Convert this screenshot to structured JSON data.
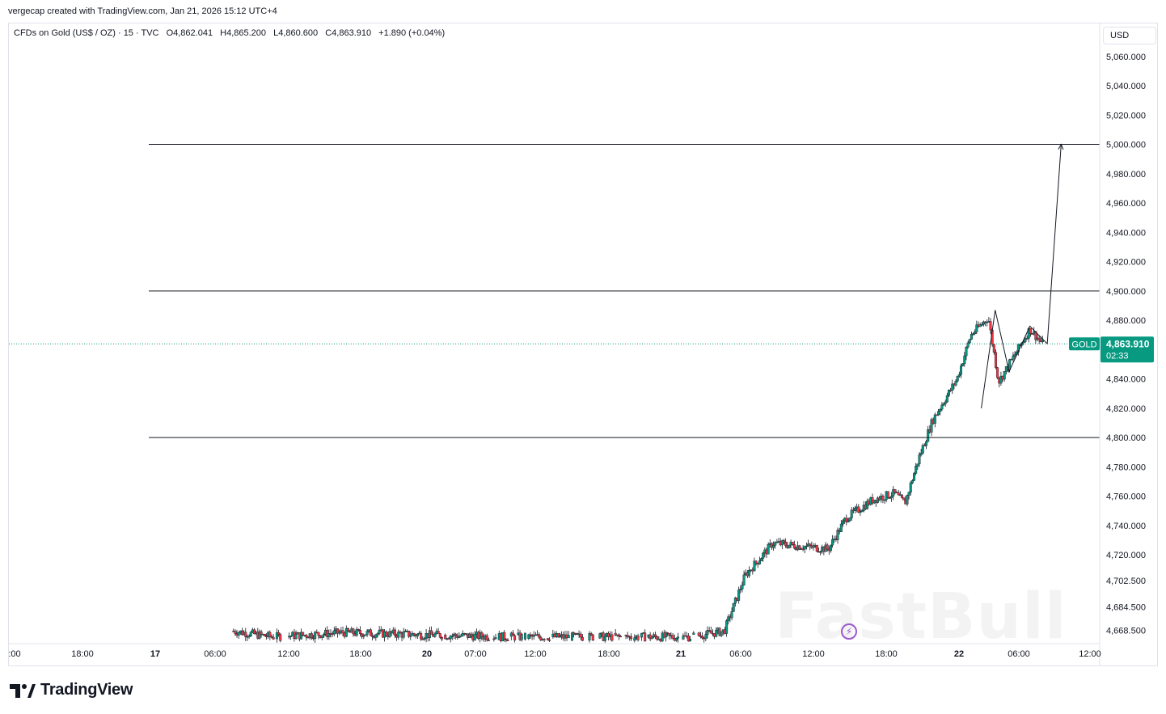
{
  "header": {
    "creator_line": "vergecap created with TradingView.com, Jan 21, 2026 15:12 UTC+4"
  },
  "legend": {
    "symbol": "CFDs on Gold (US$ / OZ) · 15 · TVC",
    "open": "O4,862.041",
    "high": "H4,865.200",
    "low": "L4,860.600",
    "close": "C4,863.910",
    "change": "+1.890 (+0.04%)"
  },
  "price_axis": {
    "currency": "USD",
    "ticks": [
      "5,060.000",
      "5,040.000",
      "5,020.000",
      "5,000.000",
      "4,980.000",
      "4,960.000",
      "4,940.000",
      "4,920.000",
      "4,900.000",
      "4,880.000",
      "4,840.000",
      "4,820.000",
      "4,800.000",
      "4,780.000",
      "4,760.000",
      "4,740.000",
      "4,720.000",
      "4,702.500",
      "4,684.500",
      "4,668.500"
    ]
  },
  "time_axis": {
    "ticks": [
      ":00",
      "18:00",
      "17",
      "06:00",
      "12:00",
      "18:00",
      "20",
      "07:00",
      "12:00",
      "18:00",
      "21",
      "06:00",
      "12:00",
      "18:00",
      "22",
      "06:00",
      "12:00"
    ]
  },
  "current_price": {
    "symbol_tag": "GOLD",
    "price": "4,863.910",
    "countdown": "02:33",
    "color": "#089981"
  },
  "colors": {
    "up": "#089981",
    "down": "#f23645",
    "line": "#131722",
    "border": "#e0e3eb"
  },
  "branding": {
    "logo_text": "TradingView",
    "watermark": "FastBull"
  },
  "chart_data": {
    "type": "candlestick",
    "title": "CFDs on Gold (US$ / OZ)",
    "interval": "15",
    "ylim": [
      4660,
      5072
    ],
    "x_range": [
      "2026-01-16 00:00",
      "2026-01-22 12:00"
    ],
    "horizontal_levels": [
      5000,
      4900,
      4800
    ],
    "last_price": 4863.91,
    "waypoints": [
      [
        "2026-01-17 08:20",
        4668
      ],
      [
        "2026-01-17 14:00",
        4664
      ],
      [
        "2026-01-18 00:00",
        4667
      ],
      [
        "2026-01-18 08:00",
        4666
      ],
      [
        "2026-01-19 00:00",
        4664
      ],
      [
        "2026-01-20 02:00",
        4664
      ],
      [
        "2026-01-20 07:00",
        4668
      ],
      [
        "2026-01-20 10:00",
        4706
      ],
      [
        "2026-01-20 14:00",
        4728
      ],
      [
        "2026-01-20 22:00",
        4724
      ],
      [
        "2026-01-21 00:30",
        4745
      ],
      [
        "2026-01-21 04:30",
        4758
      ],
      [
        "2026-01-21 07:30",
        4762
      ],
      [
        "2026-01-21 09:00",
        4755
      ],
      [
        "2026-01-21 11:00",
        4786
      ],
      [
        "2026-01-21 13:00",
        4812
      ],
      [
        "2026-01-21 16:30",
        4840
      ],
      [
        "2026-01-21 18:30",
        4870
      ],
      [
        "2026-01-21 21:00",
        4882
      ],
      [
        "2026-01-21 22:30",
        4838
      ],
      [
        "2026-01-22 01:00",
        4858
      ],
      [
        "2026-01-22 03:00",
        4874
      ],
      [
        "2026-01-22 05:00",
        4863
      ]
    ],
    "projection_path": [
      [
        "2026-01-21 20:00",
        4820
      ],
      [
        "2026-01-21 22:00",
        4887
      ],
      [
        "2026-01-22 00:00",
        4845
      ],
      [
        "2026-01-22 03:00",
        4876
      ],
      [
        "2026-01-22 05:30",
        4864
      ],
      [
        "2026-01-22 07:30",
        5000
      ]
    ]
  }
}
